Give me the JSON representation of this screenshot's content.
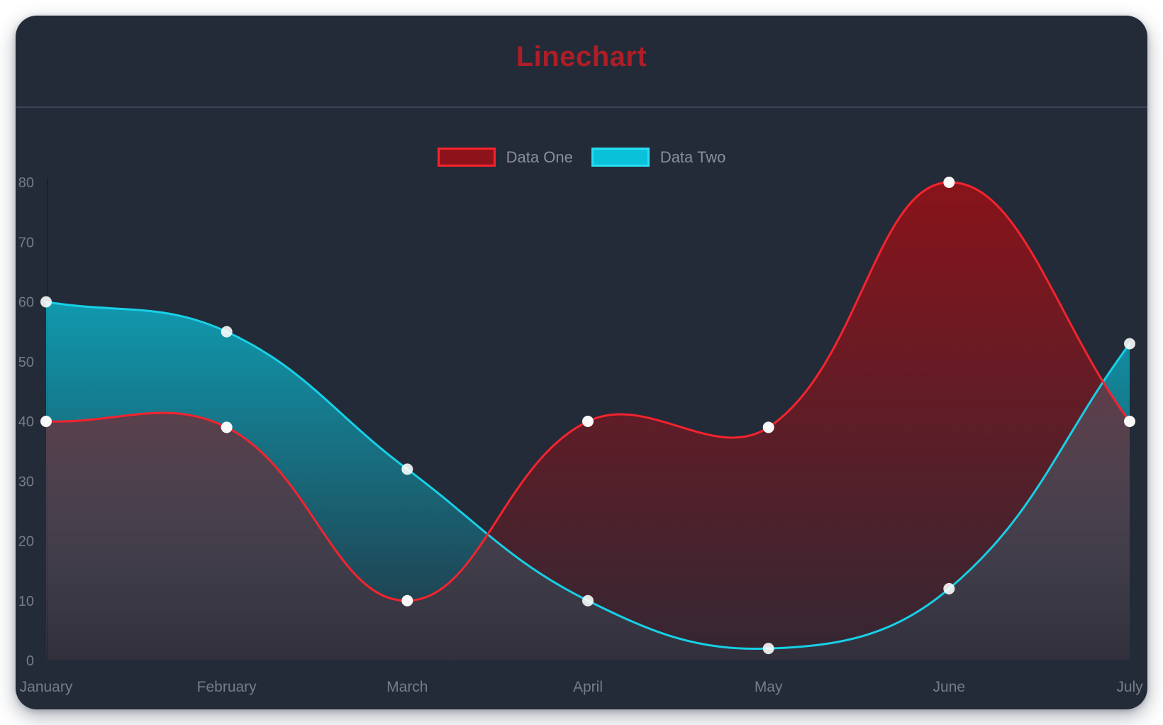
{
  "card": {
    "title": "Linechart"
  },
  "chart_data": {
    "type": "line",
    "title": "Linechart",
    "categories": [
      "January",
      "February",
      "March",
      "April",
      "May",
      "June",
      "July"
    ],
    "series": [
      {
        "name": "Data One",
        "values": [
          40,
          39,
          10,
          40,
          39,
          80,
          40
        ],
        "line_color": "#f5232e",
        "area_color": "#8e1219",
        "legend_fill": "#8e1219",
        "legend_border": "#f5232e",
        "point_color": "#ffffff",
        "point_opacity": 0.97,
        "area_top_opacity": 0.95,
        "area_bottom_opacity": 0.15
      },
      {
        "name": "Data Two",
        "values": [
          60,
          55,
          32,
          10,
          2,
          12,
          53
        ],
        "line_color": "#17d0e6",
        "area_color": "#09c2da",
        "legend_fill": "#09c2da",
        "legend_border": "#2adcf0",
        "point_color": "#ffffff",
        "point_opacity": 0.88,
        "area_top_opacity": 0.95,
        "area_bottom_opacity": 0.06
      }
    ],
    "ylim": [
      0,
      80
    ],
    "yticks": [
      0,
      10,
      20,
      30,
      40,
      50,
      60,
      70,
      80
    ],
    "xlabel": "",
    "ylabel": "",
    "grid": false,
    "legend_position": "top",
    "curve_tension": 0.4,
    "point_radius": 8,
    "line_width": 3
  },
  "colors": {
    "page_bg": "#ffffff",
    "card_bg": "#232b38",
    "title": "#ae1e27",
    "divider": "#3a4255",
    "axis_line": "#1a212c",
    "axis_text": "#767c87",
    "legend_text": "#8a8f99"
  }
}
